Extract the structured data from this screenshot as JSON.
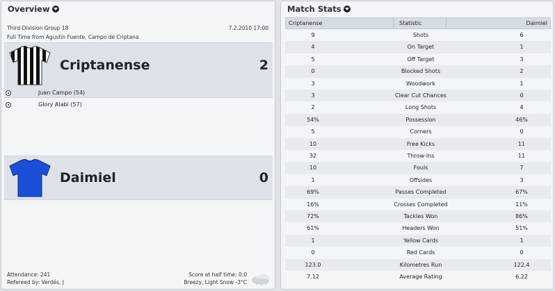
{
  "overview": {
    "title": "Overview",
    "competition": "Third Division Group 18",
    "date": "7.2.2010 17:00",
    "venue": "Full Time from Agustín Fuente, Campo de Criptana",
    "home": {
      "name": "Criptanense",
      "score": "2"
    },
    "away": {
      "name": "Daimiel",
      "score": "0"
    },
    "scorers": [
      "Juan Campo (54)",
      "Glory Alabi (57)"
    ],
    "attendance": "Attendance: 241",
    "referee": "Refereed by: Verdés, J",
    "halftime": "Score at half time: 0:0",
    "weather": "Breezy, Light Snow -3°C"
  },
  "stats": {
    "title": "Match Stats",
    "header": {
      "home": "Criptanense",
      "stat": "Statistic",
      "away": "Daimiel"
    },
    "rows": [
      {
        "home": "9",
        "stat": "Shots",
        "away": "6"
      },
      {
        "home": "4",
        "stat": "On Target",
        "away": "1"
      },
      {
        "home": "5",
        "stat": "Off Target",
        "away": "3"
      },
      {
        "home": "0",
        "stat": "Blocked Shots",
        "away": "2"
      },
      {
        "home": "3",
        "stat": "Woodwork",
        "away": "1"
      },
      {
        "home": "3",
        "stat": "Clear Cut Chances",
        "away": "0"
      },
      {
        "home": "2",
        "stat": "Long Shots",
        "away": "4"
      },
      {
        "home": "54%",
        "stat": "Possession",
        "away": "46%"
      },
      {
        "home": "5",
        "stat": "Corners",
        "away": "0"
      },
      {
        "home": "10",
        "stat": "Free Kicks",
        "away": "11"
      },
      {
        "home": "32",
        "stat": "Throw-Ins",
        "away": "11"
      },
      {
        "home": "10",
        "stat": "Fouls",
        "away": "7"
      },
      {
        "home": "1",
        "stat": "Offsides",
        "away": "3"
      },
      {
        "home": "69%",
        "stat": "Passes Completed",
        "away": "67%"
      },
      {
        "home": "16%",
        "stat": "Crosses Completed",
        "away": "11%"
      },
      {
        "home": "72%",
        "stat": "Tackles Won",
        "away": "86%"
      },
      {
        "home": "61%",
        "stat": "Headers Won",
        "away": "51%"
      },
      {
        "home": "1",
        "stat": "Yellow Cards",
        "away": "1"
      },
      {
        "home": "0",
        "stat": "Red Cards",
        "away": "0"
      },
      {
        "home": "123.0",
        "stat": "Kilometres Run",
        "away": "122.4"
      },
      {
        "home": "7.12",
        "stat": "Average Rating",
        "away": "6.22"
      }
    ]
  },
  "colors": {
    "home_kit": "#111111",
    "home_kit_stripe": "#ffffff",
    "away_kit": "#1a4fd6"
  },
  "icons": {
    "dropdown": "chevron-down-circle-icon",
    "goal": "football-icon",
    "weather": "snow-cloud-icon"
  }
}
